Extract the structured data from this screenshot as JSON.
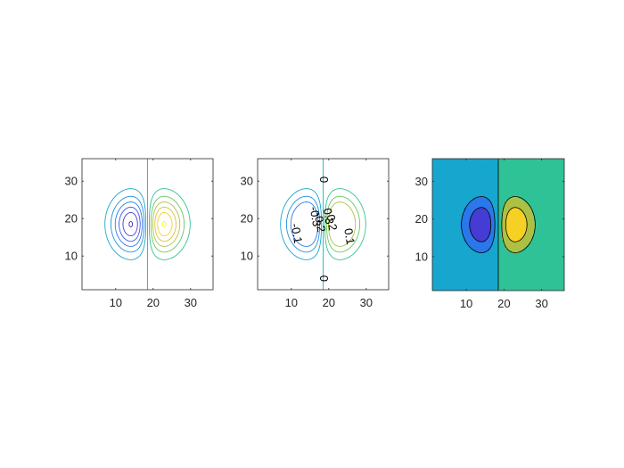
{
  "chart_data": [
    {
      "type": "contour",
      "style": "lines",
      "title": "",
      "xlabel": "",
      "ylabel": "",
      "xlim": [
        1,
        36
      ],
      "ylim": [
        1,
        36
      ],
      "xticks": [
        10,
        20,
        30
      ],
      "yticks": [
        10,
        20,
        30
      ],
      "x_tick_labels": [
        "10",
        "20",
        "30"
      ],
      "y_tick_labels": [
        "10",
        "20",
        "30"
      ],
      "grid": false,
      "field": {
        "description_formula": "z = (x - 18.5) * exp(-((x-18.5)^2/40 + (y-18.5)^2/50)) / 4.47",
        "x_center": 18.5,
        "y_center": 18.5,
        "min_value": -0.6,
        "max_value": 0.6
      },
      "levels": [
        -0.6,
        -0.5,
        -0.4,
        -0.3,
        -0.2,
        -0.1,
        0,
        0.1,
        0.2,
        0.3,
        0.4,
        0.5,
        0.6
      ],
      "colormap": "parula",
      "contour_labels": []
    },
    {
      "type": "contour",
      "style": "labeled-lines",
      "title": "",
      "xlabel": "",
      "ylabel": "",
      "xlim": [
        1,
        36
      ],
      "ylim": [
        1,
        36
      ],
      "xticks": [
        10,
        20,
        30
      ],
      "yticks": [
        10,
        20,
        30
      ],
      "x_tick_labels": [
        "10",
        "20",
        "30"
      ],
      "y_tick_labels": [
        "10",
        "20",
        "30"
      ],
      "grid": false,
      "levels": [
        -0.3,
        -0.2,
        -0.1,
        0,
        0.1,
        0.2,
        0.3
      ],
      "colormap": "parula",
      "contour_labels": [
        {
          "text": "-0.1",
          "x": 11.2,
          "y": 16.0,
          "rotate": 80
        },
        {
          "text": "-0.3",
          "x": 16.2,
          "y": 20.5,
          "rotate": 80
        },
        {
          "text": "-0.2",
          "x": 17.4,
          "y": 19.0,
          "rotate": 80
        },
        {
          "text": "0",
          "x": 18.5,
          "y": 30.4,
          "rotate": 90
        },
        {
          "text": "0.3",
          "x": 19.7,
          "y": 20.6,
          "rotate": 80
        },
        {
          "text": "0.2",
          "x": 20.6,
          "y": 18.9,
          "rotate": 80
        },
        {
          "text": "0.1",
          "x": 25.3,
          "y": 15.2,
          "rotate": 80
        },
        {
          "text": "0",
          "x": 18.5,
          "y": 4.0,
          "rotate": 90
        }
      ]
    },
    {
      "type": "contour",
      "style": "filled",
      "title": "",
      "xlabel": "",
      "ylabel": "",
      "xlim": [
        1,
        36
      ],
      "ylim": [
        1,
        36
      ],
      "xticks": [
        10,
        20,
        30
      ],
      "yticks": [
        10,
        20,
        30
      ],
      "x_tick_labels": [
        "10",
        "20",
        "30"
      ],
      "y_tick_labels": [
        "10",
        "20",
        "30"
      ],
      "grid": false,
      "levels": [
        -0.6,
        -0.4,
        -0.2,
        0,
        0.2,
        0.4,
        0.6
      ],
      "colormap": "parula",
      "line_color": "#000000",
      "contour_labels": []
    }
  ],
  "colors": {
    "axes": "#262626",
    "background": "#ffffff",
    "parula_stops": [
      "#3e26a8",
      "#4743e3",
      "#2f6ef0",
      "#1d91dc",
      "#14adc9",
      "#1cc0a8",
      "#66c763",
      "#c3bf3a",
      "#f5c228",
      "#f9fb15"
    ]
  }
}
